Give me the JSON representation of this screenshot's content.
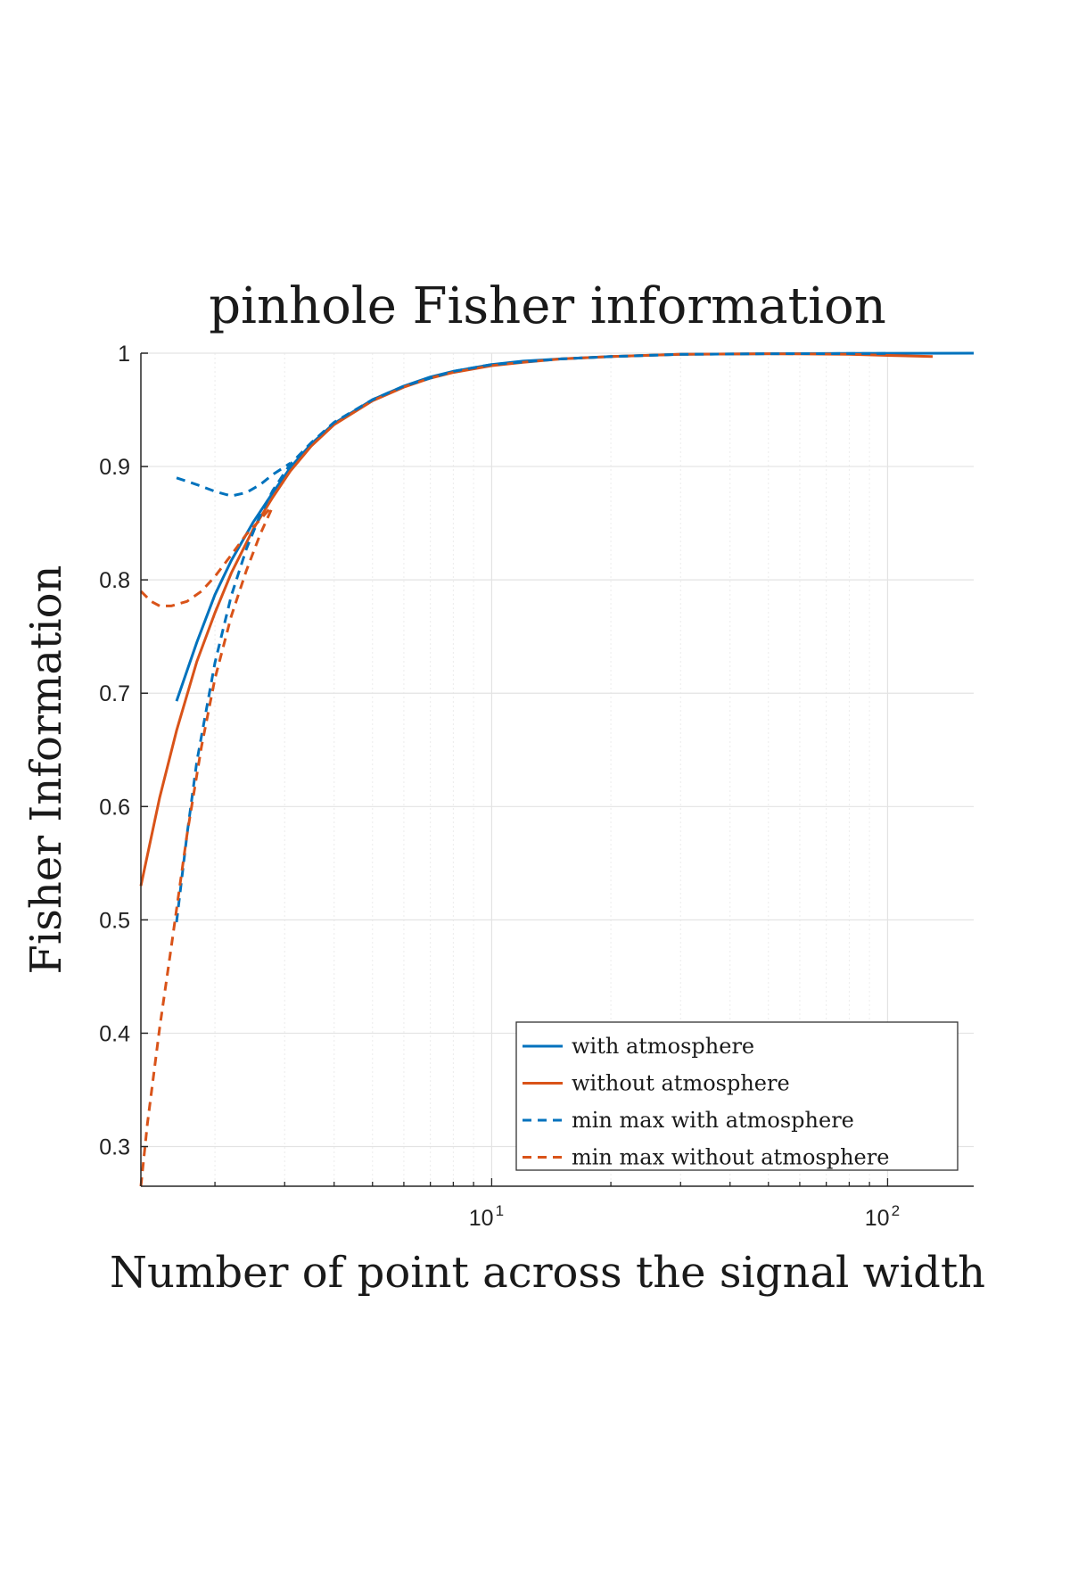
{
  "chart_data": {
    "type": "line",
    "title": "pinhole Fisher information",
    "xlabel": "Number of point across the signal width",
    "ylabel": "Fisher Information",
    "xscale": "log",
    "xlim": [
      1.3,
      165
    ],
    "ylim": [
      0.265,
      1.0
    ],
    "grid": true,
    "legend_position": "bottom-right",
    "y_ticks": [
      0.3,
      0.4,
      0.5,
      0.6,
      0.7,
      0.8,
      0.9,
      1
    ],
    "y_tick_labels": [
      "0.3",
      "0.4",
      "0.5",
      "0.6",
      "0.7",
      "0.8",
      "0.9",
      "1"
    ],
    "x_ticks": [
      {
        "value": 10,
        "base": "10",
        "exponent": "1"
      },
      {
        "value": 100,
        "base": "10",
        "exponent": "2"
      }
    ],
    "series": [
      {
        "name": "with atmosphere",
        "color": "#0072BD",
        "style": "solid",
        "x": [
          1.6,
          1.8,
          2.0,
          2.2,
          2.5,
          2.8,
          3.1,
          3.5,
          4,
          5,
          6,
          7,
          8,
          10,
          12,
          15,
          20,
          30,
          50,
          80,
          120,
          165
        ],
        "y": [
          0.693,
          0.745,
          0.787,
          0.817,
          0.851,
          0.877,
          0.899,
          0.92,
          0.938,
          0.959,
          0.971,
          0.979,
          0.984,
          0.99,
          0.993,
          0.995,
          0.997,
          0.999,
          0.9995,
          0.9998,
          0.9999,
          1.0
        ]
      },
      {
        "name": "without atmosphere",
        "color": "#D95319",
        "style": "solid",
        "x": [
          1.3,
          1.45,
          1.6,
          1.8,
          2.0,
          2.2,
          2.5,
          2.8,
          3.1,
          3.5,
          4,
          5,
          6,
          7,
          8,
          10,
          12,
          15,
          20,
          30,
          50,
          80,
          100,
          130
        ],
        "y": [
          0.53,
          0.608,
          0.667,
          0.728,
          0.771,
          0.806,
          0.845,
          0.873,
          0.896,
          0.918,
          0.937,
          0.958,
          0.97,
          0.978,
          0.983,
          0.989,
          0.992,
          0.995,
          0.997,
          0.999,
          0.9995,
          0.999,
          0.998,
          0.997
        ]
      },
      {
        "name": "min max with atmosphere",
        "color": "#0072BD",
        "style": "dashed",
        "x": [
          1.6,
          1.7,
          1.8,
          2.0,
          2.2,
          2.4,
          2.6,
          2.8,
          3.1,
          3.5,
          4,
          5,
          6,
          8,
          10,
          15,
          20,
          30,
          50,
          100
        ],
        "y": [
          0.498,
          0.575,
          0.64,
          0.727,
          0.786,
          0.827,
          0.857,
          0.879,
          0.902,
          0.921,
          0.939,
          0.959,
          0.971,
          0.984,
          0.99,
          0.995,
          0.997,
          0.999,
          0.9995,
          0.9998
        ]
      },
      {
        "name": "min max with atmosphere",
        "color": "#0072BD",
        "style": "dashed",
        "x": [
          1.6,
          1.7,
          1.8,
          2.0,
          2.2,
          2.4,
          2.6,
          2.8,
          3.1
        ],
        "y": [
          0.89,
          0.887,
          0.884,
          0.878,
          0.874,
          0.877,
          0.884,
          0.893,
          0.903
        ]
      },
      {
        "name": "min max without atmosphere",
        "color": "#D95319",
        "style": "dashed",
        "x": [
          1.3,
          1.35,
          1.45,
          1.55,
          1.7,
          1.85,
          2.0,
          2.2,
          2.4,
          2.6,
          2.8
        ],
        "y": [
          0.265,
          0.32,
          0.405,
          0.475,
          0.575,
          0.653,
          0.713,
          0.768,
          0.808,
          0.84,
          0.865
        ]
      },
      {
        "name": "min max without atmosphere",
        "color": "#D95319",
        "style": "dashed",
        "x": [
          1.3,
          1.38,
          1.45,
          1.55,
          1.7,
          1.85,
          2.0,
          2.2,
          2.4,
          2.6,
          2.8
        ],
        "y": [
          0.79,
          0.781,
          0.777,
          0.777,
          0.781,
          0.79,
          0.803,
          0.822,
          0.84,
          0.853,
          0.866
        ]
      }
    ],
    "legend": [
      {
        "label": "with atmosphere",
        "color": "#0072BD",
        "style": "solid"
      },
      {
        "label": "without atmosphere",
        "color": "#D95319",
        "style": "solid"
      },
      {
        "label": "min max with atmosphere",
        "color": "#0072BD",
        "style": "dashed"
      },
      {
        "label": "min max without atmosphere",
        "color": "#D95319",
        "style": "dashed"
      }
    ]
  }
}
